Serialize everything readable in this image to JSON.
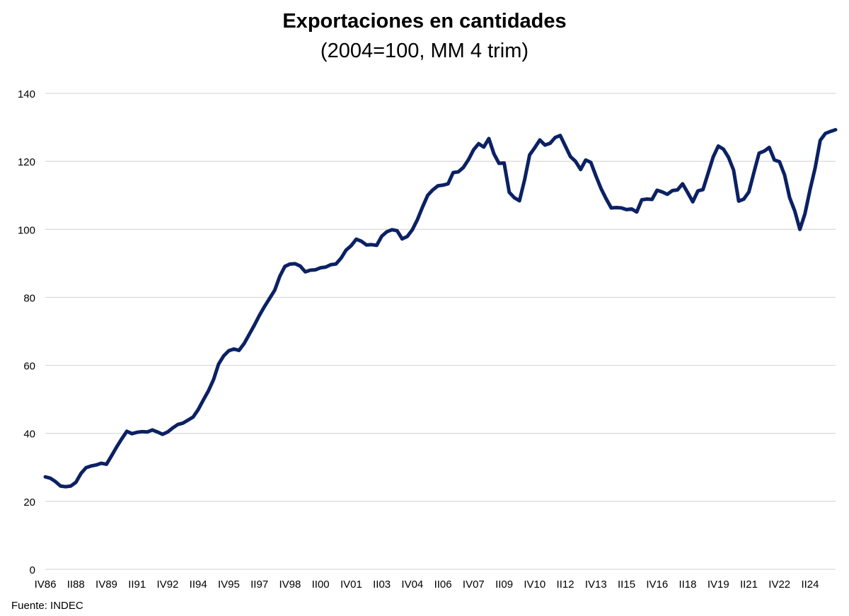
{
  "chart_data": {
    "type": "line",
    "title": "Exportaciones en cantidades",
    "subtitle": "(2004=100, MM 4 trim)",
    "xlabel": "",
    "ylabel": "",
    "ylim": [
      0,
      140
    ],
    "yticks": [
      0,
      20,
      40,
      60,
      80,
      100,
      120,
      140
    ],
    "grid": true,
    "legend": "none",
    "tick_labels": [
      {
        "label": "IV86",
        "index": 0
      },
      {
        "label": "II88",
        "index": 6
      },
      {
        "label": "IV89",
        "index": 12
      },
      {
        "label": "II91",
        "index": 18
      },
      {
        "label": "IV92",
        "index": 24
      },
      {
        "label": "II94",
        "index": 30
      },
      {
        "label": "IV95",
        "index": 36
      },
      {
        "label": "II97",
        "index": 42
      },
      {
        "label": "IV98",
        "index": 48
      },
      {
        "label": "II00",
        "index": 54
      },
      {
        "label": "IV01",
        "index": 60
      },
      {
        "label": "II03",
        "index": 66
      },
      {
        "label": "IV04",
        "index": 72
      },
      {
        "label": "II06",
        "index": 78
      },
      {
        "label": "IV07",
        "index": 84
      },
      {
        "label": "II09",
        "index": 90
      },
      {
        "label": "IV10",
        "index": 96
      },
      {
        "label": "II12",
        "index": 102
      },
      {
        "label": "IV13",
        "index": 108
      },
      {
        "label": "II15",
        "index": 114
      },
      {
        "label": "IV16",
        "index": 120
      },
      {
        "label": "II18",
        "index": 126
      },
      {
        "label": "IV19",
        "index": 132
      },
      {
        "label": "II21",
        "index": 138
      },
      {
        "label": "IV22",
        "index": 144
      },
      {
        "label": "II24",
        "index": 150
      }
    ],
    "x_last_index": 155,
    "series": [
      {
        "color": "#0b2164",
        "values": [
          27.2,
          26.8,
          25.8,
          24.5,
          24.3,
          24.5,
          25.6,
          28.2,
          29.9,
          30.4,
          30.7,
          31.2,
          30.9,
          33.4,
          36.0,
          38.4,
          40.6,
          39.9,
          40.3,
          40.5,
          40.4,
          41.0,
          40.4,
          39.7,
          40.4,
          41.6,
          42.6,
          43.0,
          43.9,
          44.8,
          47.0,
          49.8,
          52.5,
          55.8,
          60.4,
          62.8,
          64.3,
          64.8,
          64.4,
          66.4,
          69.1,
          71.8,
          74.7,
          77.3,
          79.7,
          82.1,
          86.2,
          89.1,
          89.8,
          89.9,
          89.2,
          87.5,
          88.0,
          88.1,
          88.7,
          88.9,
          89.6,
          89.8,
          91.5,
          93.9,
          95.2,
          97.1,
          96.5,
          95.4,
          95.5,
          95.3,
          98.0,
          99.3,
          99.9,
          99.6,
          97.2,
          97.9,
          99.9,
          102.9,
          106.6,
          110.0,
          111.6,
          112.8,
          113.0,
          113.4,
          116.7,
          116.9,
          118.2,
          120.5,
          123.4,
          125.2,
          124.2,
          126.7,
          122.2,
          119.4,
          119.5,
          110.9,
          109.3,
          108.4,
          114.5,
          121.9,
          124.0,
          126.3,
          124.8,
          125.3,
          127.0,
          127.6,
          124.5,
          121.4,
          120.0,
          117.6,
          120.4,
          119.7,
          115.7,
          112.0,
          109.0,
          106.3,
          106.4,
          106.3,
          105.8,
          106.0,
          105.1,
          108.7,
          108.9,
          108.8,
          111.5,
          111.0,
          110.3,
          111.4,
          111.6,
          113.4,
          110.8,
          108.1,
          111.3,
          111.7,
          116.5,
          121.3,
          124.5,
          123.6,
          121.2,
          117.4,
          108.3,
          108.9,
          111.0,
          116.8,
          122.4,
          123.0,
          124.1,
          120.4,
          119.9,
          116.0,
          109.3,
          105.4,
          100.0,
          104.6,
          111.7,
          118.1,
          126.2,
          128.2,
          128.8,
          129.3
        ]
      }
    ]
  },
  "source_note": "Fuente: INDEC"
}
